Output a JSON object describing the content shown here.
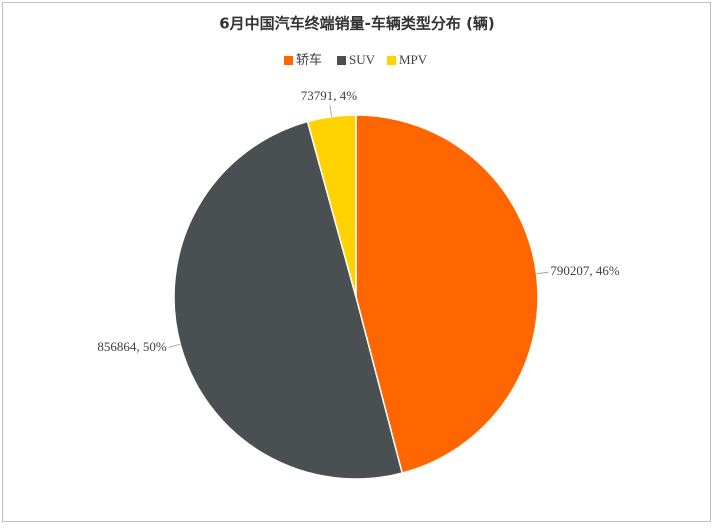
{
  "chart_data": {
    "type": "pie",
    "title": "6月中国汽车终端销量-车辆类型分布 (辆)",
    "categories": [
      "轿车",
      "SUV",
      "MPV"
    ],
    "values": [
      790207,
      856864,
      73791
    ],
    "value_labels": [
      "790207, 46%",
      "856864, 50%",
      "73791, 4%"
    ],
    "colors": [
      "#ff6600",
      "#4a4f52",
      "#ffd200"
    ],
    "legend": "top"
  }
}
